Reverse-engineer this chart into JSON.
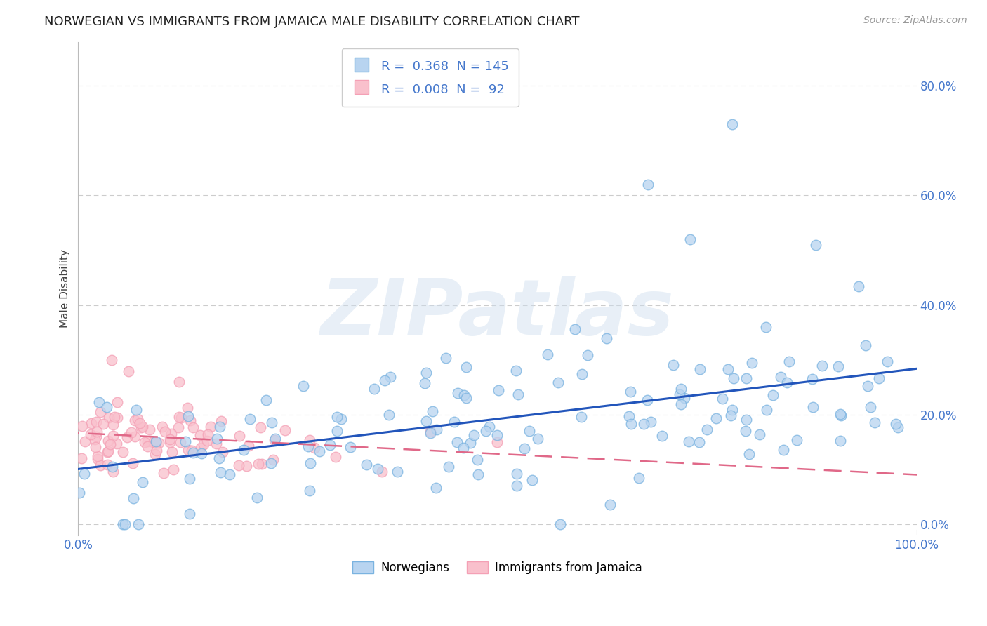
{
  "title": "NORWEGIAN VS IMMIGRANTS FROM JAMAICA MALE DISABILITY CORRELATION CHART",
  "source": "Source: ZipAtlas.com",
  "ylabel": "Male Disability",
  "xlabel": "",
  "xlim": [
    0.0,
    1.0
  ],
  "ylim": [
    -0.02,
    0.88
  ],
  "yticks": [
    0.0,
    0.2,
    0.4,
    0.6,
    0.8
  ],
  "ytick_labels": [
    "0.0%",
    "20.0%",
    "40.0%",
    "60.0%",
    "80.0%"
  ],
  "xticks": [
    0.0,
    1.0
  ],
  "xtick_labels": [
    "0.0%",
    "100.0%"
  ],
  "norwegian_color": "#7ab3e0",
  "norwegian_fill": "#b8d4f0",
  "immigrant_color": "#f4a0b5",
  "immigrant_fill": "#f9c0cc",
  "blue_line_color": "#2255bb",
  "pink_line_color": "#e06888",
  "R_norwegian": 0.368,
  "N_norwegian": 145,
  "R_immigrant": 0.008,
  "N_immigrant": 92,
  "watermark": "ZIPatlas",
  "grid_color": "#cccccc",
  "background_color": "#ffffff",
  "title_fontsize": 13,
  "source_fontsize": 10,
  "label_fontsize": 11,
  "tick_color": "#4477cc",
  "legend_R1_val": "0.368",
  "legend_N1_val": "145",
  "legend_R2_val": "0.008",
  "legend_N2_val": " 92"
}
